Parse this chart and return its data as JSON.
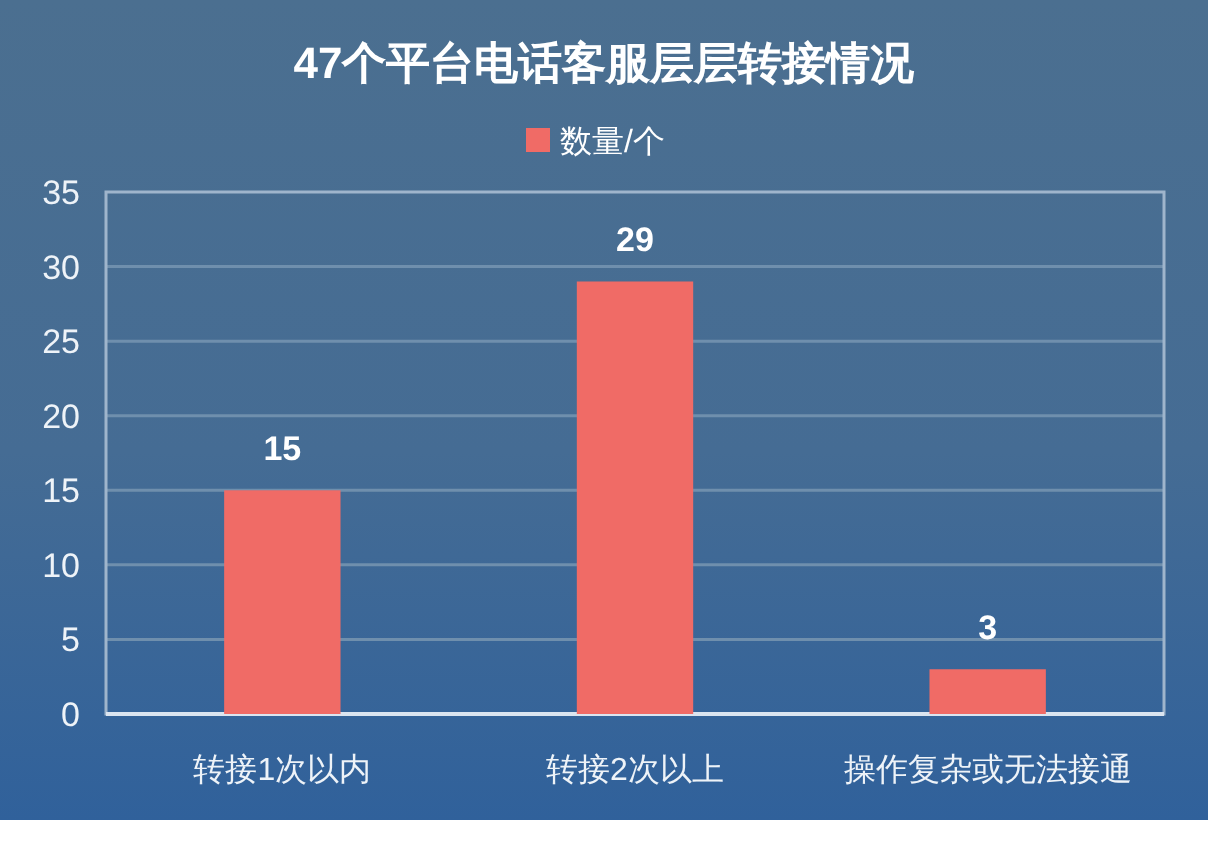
{
  "chart_data": {
    "type": "bar",
    "title": "47个平台电话客服层层转接情况",
    "categories": [
      "转接1次以内",
      "转接2次以上",
      "操作复杂或无法接通"
    ],
    "series": [
      {
        "name": "数量/个",
        "color": "#f06b66",
        "values": [
          15,
          29,
          3
        ]
      }
    ],
    "ylim": [
      0,
      35
    ],
    "yticks": [
      0,
      5,
      10,
      15,
      20,
      25,
      30,
      35
    ],
    "grid": "y",
    "legend": "top",
    "data_labels": true
  }
}
